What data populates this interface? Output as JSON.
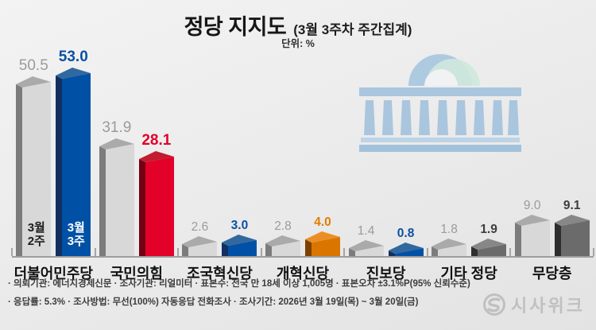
{
  "title": {
    "main": "정당 지지도",
    "sub": "(3월 3주차 주간집계)",
    "unit": "단위: %"
  },
  "chart_data": {
    "type": "bar",
    "title": "정당 지지도 (3월 3주차 주간집계)",
    "unit": "%",
    "categories": [
      "더불어민주당",
      "국민의힘",
      "조국혁신당",
      "개혁신당",
      "진보당",
      "기타 정당",
      "무당층"
    ],
    "series": [
      {
        "name": "3월 2주",
        "values": [
          50.5,
          31.9,
          2.6,
          2.8,
          1.4,
          1.8,
          9.0
        ],
        "value_labels": [
          "50.5",
          "31.9",
          "2.6",
          "2.8",
          "1.4",
          "1.8",
          "9.0"
        ],
        "palette": [
          "gray",
          "gray",
          "gray",
          "gray",
          "gray",
          "gray",
          "gray"
        ],
        "inline_label": "3월 2주"
      },
      {
        "name": "3월 3주",
        "values": [
          53.0,
          28.1,
          3.0,
          4.0,
          0.8,
          1.9,
          9.1
        ],
        "value_labels": [
          "53.0",
          "28.1",
          "3.0",
          "4.0",
          "0.8",
          "1.9",
          "9.1"
        ],
        "palette": [
          "blue",
          "red",
          "blue",
          "orange",
          "blue",
          "darkgray",
          "darkgray"
        ],
        "inline_label": "3월 3주"
      }
    ],
    "palettes": {
      "gray": {
        "side": "#7c7c7c",
        "front": "#d8d8d8",
        "top": "#aaaaaa",
        "label": "#9b9b9b",
        "inline_text": "#1c1c1c"
      },
      "darkgray": {
        "side": "#2e2e2e",
        "front": "#6b6b6b",
        "top": "#878787",
        "label": "#3d3d3d",
        "inline_text": "#ffffff"
      },
      "blue": {
        "side": "#122f5f",
        "front": "#0051a6",
        "top": "#31689f",
        "label": "#0b50a4",
        "inline_text": "#ffffff"
      },
      "red": {
        "side": "#740014",
        "front": "#e30029",
        "top": "#c21c31",
        "label": "#e30029",
        "inline_text": "#ffffff"
      },
      "orange": {
        "side": "#7e4000",
        "front": "#da7600",
        "top": "#ea8f26",
        "label": "#e07d00",
        "inline_text": "#ffffff"
      }
    },
    "legend_position": "inside-first-group",
    "grid": false,
    "ylim": [
      0,
      55
    ]
  },
  "footer": {
    "line1": "· 의뢰기관: 에너지경제신문 · 조사기관: 리얼미터 · 표본수: 전국 만 18세 이상 1,005명 · 표본오차 ±3.1%P(95% 신뢰수준)",
    "line2": "· 응답률: 5.3% · 조사방법: 무선(100%) 자동응답 전화조사 · 조사기간: 2026년 3월 19일(목) ~ 3월 20일(금)"
  },
  "logo": {
    "text": "시사위크",
    "mark": "s-circle-icon",
    "color": "#c0c0c0"
  },
  "illustration": {
    "name": "national-assembly-building",
    "main_color": "#a9c6de",
    "accent_color": "#cfe9dd"
  }
}
